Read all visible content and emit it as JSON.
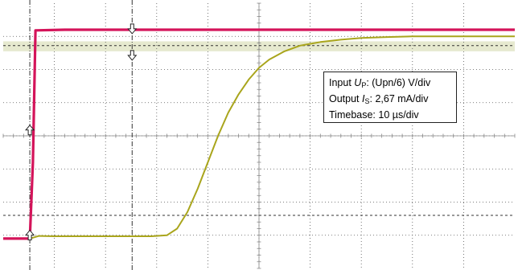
{
  "chart_data": {
    "type": "line",
    "title": "",
    "xlabel": "",
    "ylabel": "",
    "grid": true,
    "divisions": {
      "x": 10,
      "y": 8
    },
    "xlim": [
      0,
      10
    ],
    "ylim": [
      -4,
      4
    ],
    "series": [
      {
        "color": "#d4145a",
        "x": [
          0,
          0.45,
          0.52,
          0.58,
          0.63,
          1.2,
          5.0,
          10.0
        ],
        "y": [
          -3.1,
          -3.1,
          -3.1,
          -0.8,
          3.18,
          3.2,
          3.2,
          3.2
        ]
      },
      {
        "color": "#a9a51c",
        "x": [
          0.52,
          0.7,
          1.0,
          1.5,
          2.0,
          2.5,
          2.9,
          3.2,
          3.4,
          3.6,
          3.8,
          4.0,
          4.2,
          4.4,
          4.6,
          4.8,
          5.0,
          5.2,
          5.5,
          5.8,
          6.2,
          6.6,
          7.0,
          7.5,
          8.0,
          10.0
        ],
        "y": [
          -3.1,
          -3.02,
          -3.03,
          -3.03,
          -3.03,
          -3.03,
          -3.03,
          -3.0,
          -2.8,
          -2.3,
          -1.6,
          -0.8,
          0.0,
          0.7,
          1.25,
          1.7,
          2.05,
          2.3,
          2.55,
          2.72,
          2.83,
          2.9,
          2.95,
          2.98,
          3.0,
          3.0
        ]
      }
    ],
    "band": {
      "y_from": 2.55,
      "y_to": 2.85,
      "color": "#e6e9cf"
    },
    "reference_lines_y": [
      2.72,
      -2.4
    ],
    "cursor_lines_x": [
      0.52,
      2.52
    ],
    "markers": [
      {
        "x": 0.52,
        "y": 0.15,
        "direction": "up"
      },
      {
        "x": 0.52,
        "y": -3.02,
        "direction": "up"
      },
      {
        "x": 2.52,
        "y": 3.25,
        "direction": "down"
      },
      {
        "x": 2.52,
        "y": 2.45,
        "direction": "down"
      }
    ],
    "annotations": {
      "line1_prefix": "Input ",
      "line1_sym": "U",
      "line1_sub": "P",
      "line1_suffix": ": (Upn/6) V/div",
      "line2_prefix": "Output ",
      "line2_sym": "I",
      "line2_sub": "S",
      "line2_suffix": ": 2,67 mA/div",
      "line3": "Timebase: 10 µs/div"
    }
  }
}
